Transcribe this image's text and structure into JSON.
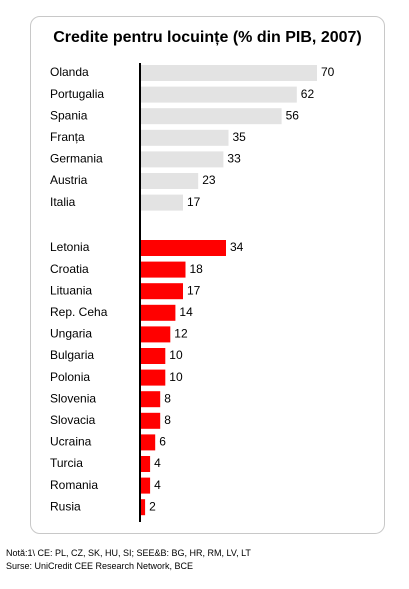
{
  "chart_data": {
    "type": "bar",
    "orientation": "horizontal",
    "title": "Credite pentru locuințe (% din PIB, 2007)",
    "groups": [
      {
        "color": "#e3e3e3",
        "categories": [
          "Olanda",
          "Portugalia",
          "Spania",
          "Franța",
          "Germania",
          "Austria",
          "Italia"
        ],
        "values": [
          70,
          62,
          56,
          35,
          33,
          23,
          17
        ]
      },
      {
        "color": "#ff0000",
        "categories": [
          "Letonia",
          "Croatia",
          "Lituania",
          "Rep. Ceha",
          "Ungaria",
          "Bulgaria",
          "Polonia",
          "Slovenia",
          "Slovacia",
          "Ucraina",
          "Turcia",
          "Romania",
          "Rusia"
        ],
        "values": [
          34,
          18,
          17,
          14,
          12,
          10,
          10,
          8,
          8,
          6,
          4,
          4,
          2
        ]
      }
    ],
    "xlim": [
      0,
      70
    ],
    "grid": false,
    "legend": "none",
    "data_labels": true
  },
  "notes": {
    "line1": "Notă:1\\ CE: PL, CZ, SK, HU, SI; SEE&B: BG, HR, RM, LV, LT",
    "line2": "Surse: UniCredit CEE Research Network, BCE"
  }
}
